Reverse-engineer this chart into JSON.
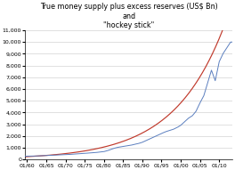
{
  "title_line1": "True money supply plus excess reserves (US$ Bn)",
  "title_line2": "and",
  "title_line3": "\"hockey stick\"",
  "x_start_year": 1959.5,
  "x_end_year": 2013.5,
  "ylim": [
    0,
    11000
  ],
  "yticks": [
    0,
    1000,
    2000,
    3000,
    4000,
    5000,
    6000,
    7000,
    8000,
    9000,
    10000,
    11000
  ],
  "xtick_years": [
    1960,
    1965,
    1970,
    1975,
    1980,
    1985,
    1990,
    1995,
    2000,
    2005,
    2010
  ],
  "line_color": "#5B7FBF",
  "curve_color": "#C0392B",
  "background_color": "#FFFFFF",
  "grid_color": "#C8C8C8",
  "title_fontsize": 5.8,
  "tick_fontsize": 4.5,
  "tms_key_years": [
    1960,
    1962,
    1964,
    1966,
    1968,
    1970,
    1972,
    1974,
    1976,
    1978,
    1979,
    1980,
    1981,
    1982,
    1983,
    1984,
    1985,
    1986,
    1987,
    1988,
    1989,
    1990,
    1991,
    1992,
    1993,
    1994,
    1995,
    1996,
    1997,
    1998,
    1999,
    2000,
    2001,
    2002,
    2003,
    2004,
    2005,
    2006,
    2007,
    2008,
    2009,
    2010,
    2011,
    2012,
    2013
  ],
  "tms_key_vals": [
    270,
    290,
    310,
    340,
    370,
    400,
    440,
    490,
    540,
    590,
    620,
    660,
    750,
    870,
    980,
    1050,
    1100,
    1150,
    1200,
    1280,
    1350,
    1450,
    1600,
    1750,
    1900,
    2050,
    2200,
    2350,
    2450,
    2550,
    2700,
    2900,
    3200,
    3500,
    3700,
    4100,
    4800,
    5400,
    6500,
    7600,
    6700,
    8300,
    9000,
    9500,
    10000
  ],
  "hockey_a": 230,
  "hockey_b": 0.076
}
